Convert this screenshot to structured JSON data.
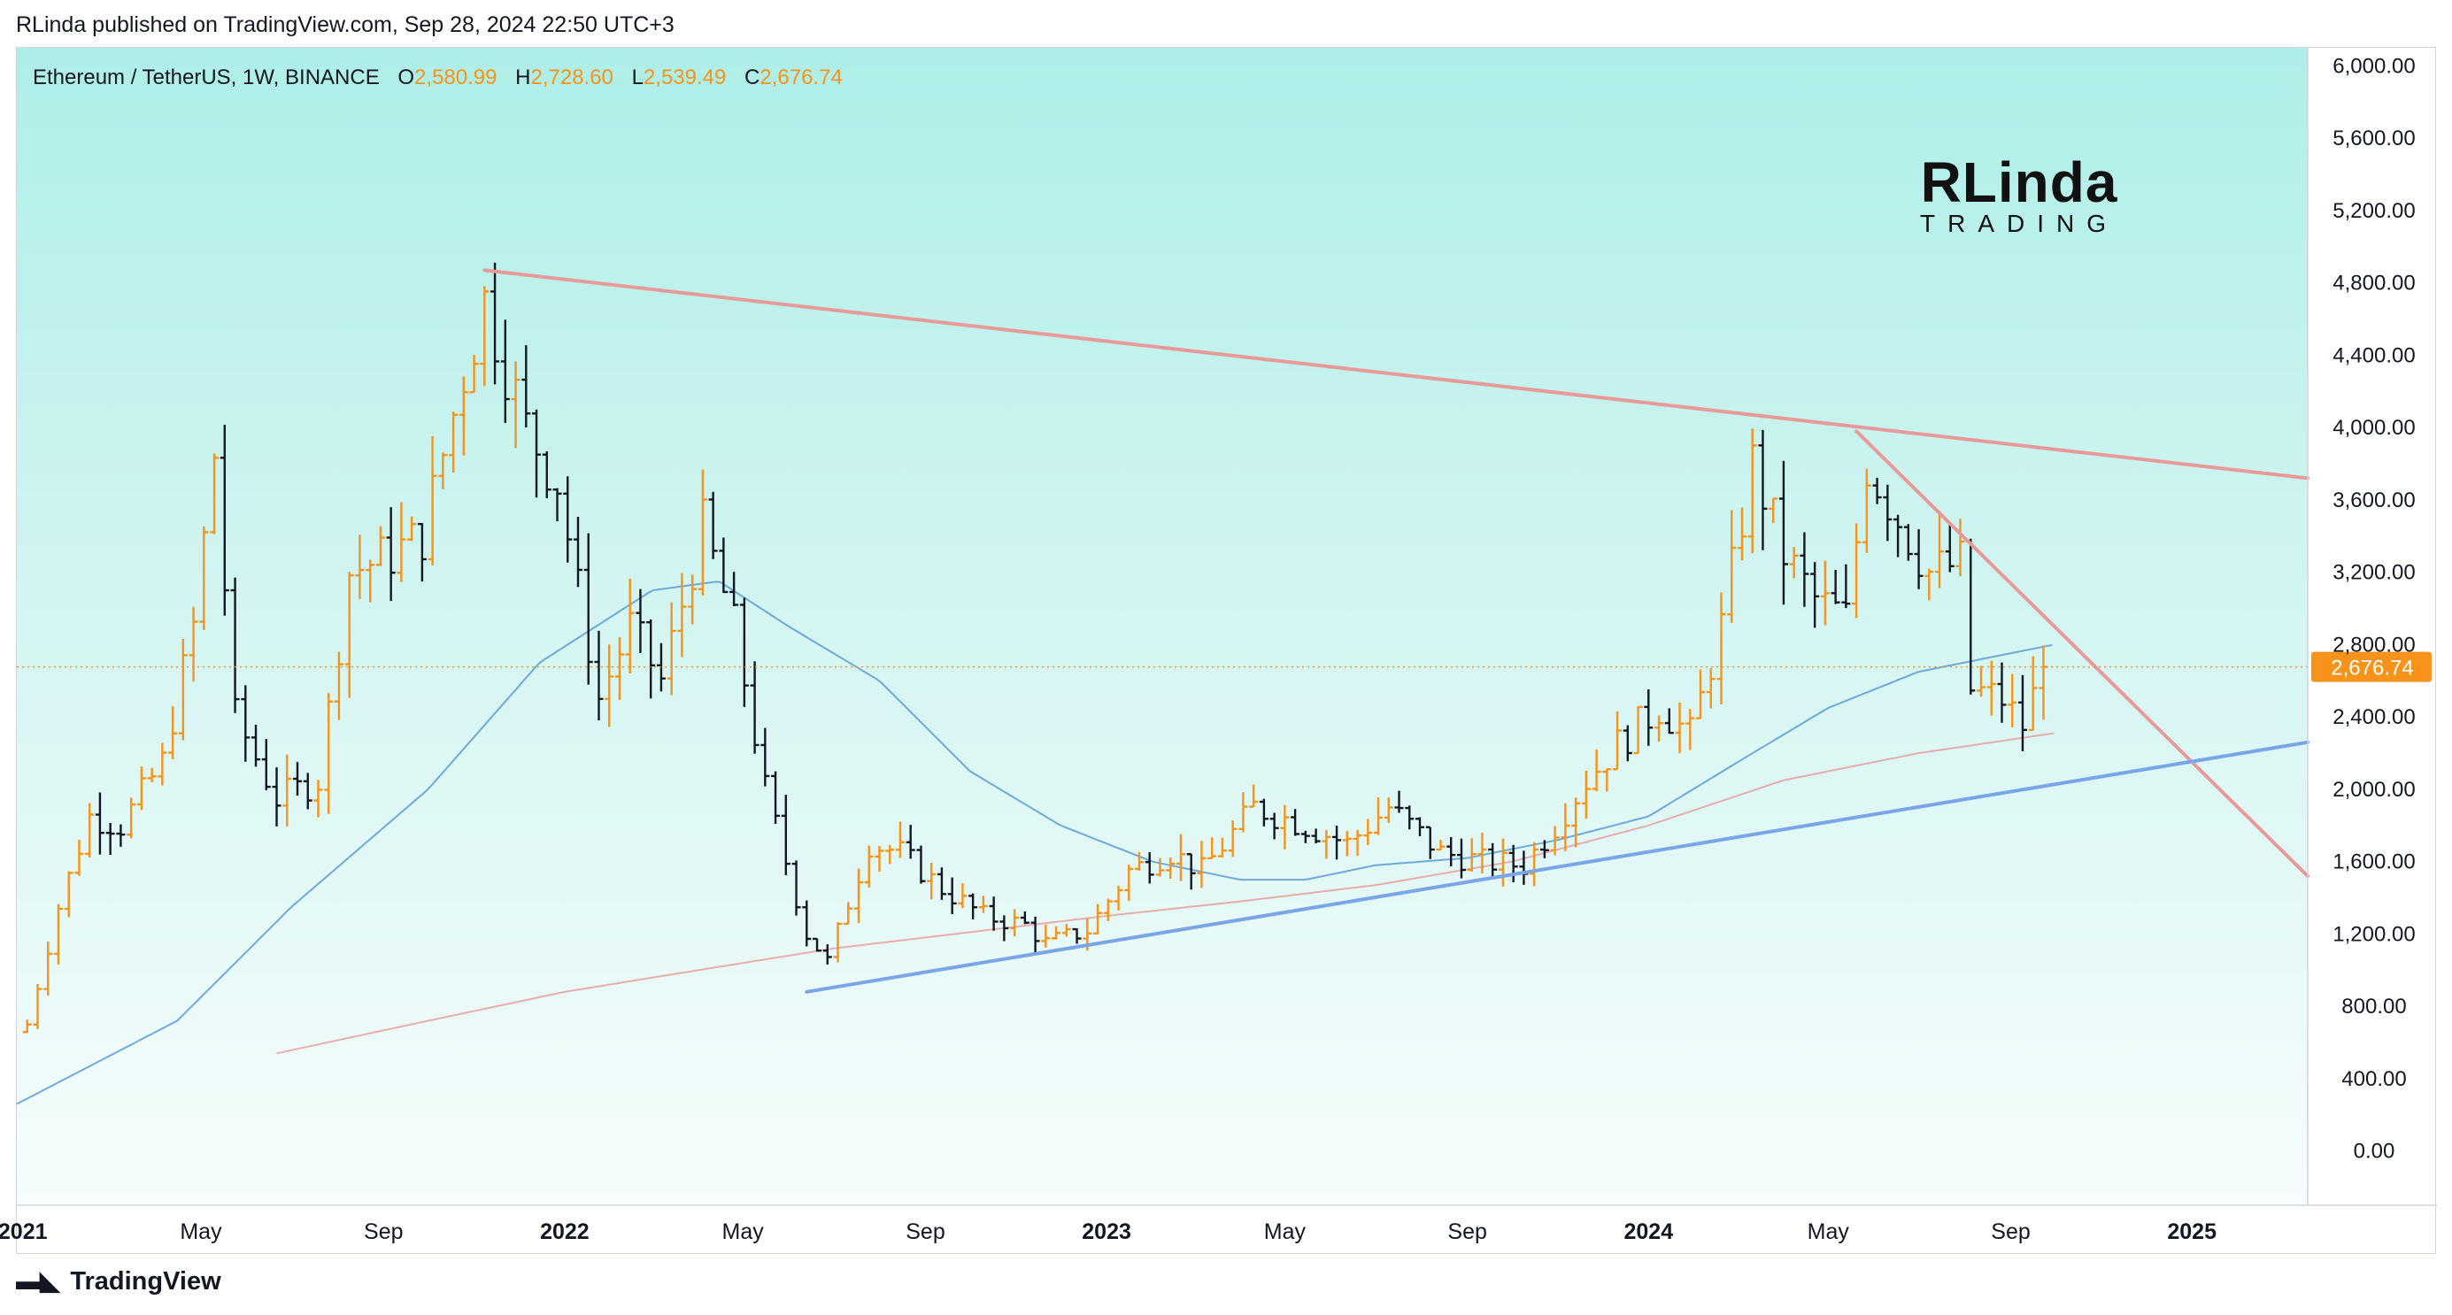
{
  "header": {
    "published": "RLinda published on TradingView.com, Sep 28, 2024 22:50 UTC+3"
  },
  "legend": {
    "symbol": "Ethereum / TetherUS, 1W, BINANCE",
    "o_label": "O",
    "o_value": "2,580.99",
    "h_label": "H",
    "h_value": "2,728.60",
    "l_label": "L",
    "l_value": "2,539.49",
    "c_label": "C",
    "c_value": "2,676.74"
  },
  "brand": {
    "line1": "RLinda",
    "line2": "TRADING"
  },
  "footer": {
    "label": "TradingView"
  },
  "colors": {
    "up": "#f7931a",
    "down": "#131722",
    "ma_fast": "#5b9bd5",
    "ma_slow": "#e8a0a0",
    "resistance": "#e89a9a",
    "support": "#7aa6e8",
    "last_price": "#f7931a"
  },
  "chart_data": {
    "type": "ohlc-bar",
    "symbol": "ETHUSDT",
    "timeframe": "1W",
    "last_price": 2676.74,
    "y_axis": {
      "ticks": [
        "0.00",
        "400.00",
        "800.00",
        "1,200.00",
        "1,600.00",
        "2,000.00",
        "2,400.00",
        "2,800.00",
        "3,200.00",
        "3,600.00",
        "4,000.00",
        "4,400.00",
        "4,800.00",
        "5,200.00",
        "5,600.00",
        "6,000.00"
      ],
      "range": [
        -300,
        6100
      ]
    },
    "x_axis": {
      "range": [
        "2020-12-28",
        "2025-03-20"
      ],
      "labels": [
        {
          "text": "2021",
          "date": "2021-01-01",
          "bold": true
        },
        {
          "text": "May",
          "date": "2021-05-01",
          "bold": false
        },
        {
          "text": "Sep",
          "date": "2021-09-01",
          "bold": false
        },
        {
          "text": "2022",
          "date": "2022-01-01",
          "bold": true
        },
        {
          "text": "May",
          "date": "2022-05-01",
          "bold": false
        },
        {
          "text": "Sep",
          "date": "2022-09-01",
          "bold": false
        },
        {
          "text": "2023",
          "date": "2023-01-01",
          "bold": true
        },
        {
          "text": "May",
          "date": "2023-05-01",
          "bold": false
        },
        {
          "text": "Sep",
          "date": "2023-09-01",
          "bold": false
        },
        {
          "text": "2024",
          "date": "2024-01-01",
          "bold": true
        },
        {
          "text": "May",
          "date": "2024-05-01",
          "bold": false
        },
        {
          "text": "Sep",
          "date": "2024-09-01",
          "bold": false
        },
        {
          "text": "2025",
          "date": "2025-01-01",
          "bold": true
        }
      ]
    },
    "ohlc_anchors": [
      [
        "2021-01-04",
        700
      ],
      [
        "2021-01-25",
        1350
      ],
      [
        "2021-02-15",
        1850
      ],
      [
        "2021-03-08",
        1800
      ],
      [
        "2021-04-05",
        2150
      ],
      [
        "2021-04-26",
        2900
      ],
      [
        "2021-05-10",
        3850
      ],
      [
        "2021-05-24",
        2400
      ],
      [
        "2021-06-21",
        1950
      ],
      [
        "2021-07-19",
        2050
      ],
      [
        "2021-08-09",
        3200
      ],
      [
        "2021-09-06",
        3300
      ],
      [
        "2021-09-27",
        3400
      ],
      [
        "2021-10-25",
        4300
      ],
      [
        "2021-11-08",
        4700
      ],
      [
        "2021-12-06",
        4000
      ],
      [
        "2021-12-27",
        3700
      ],
      [
        "2022-01-24",
        2500
      ],
      [
        "2022-02-14",
        2900
      ],
      [
        "2022-03-07",
        2600
      ],
      [
        "2022-04-04",
        3450
      ],
      [
        "2022-04-25",
        2900
      ],
      [
        "2022-05-16",
        2000
      ],
      [
        "2022-06-13",
        1200
      ],
      [
        "2022-06-27",
        1050
      ],
      [
        "2022-07-25",
        1700
      ],
      [
        "2022-08-15",
        1650
      ],
      [
        "2022-09-12",
        1450
      ],
      [
        "2022-10-10",
        1300
      ],
      [
        "2022-11-07",
        1250
      ],
      [
        "2022-11-21",
        1150
      ],
      [
        "2022-12-19",
        1220
      ],
      [
        "2023-01-16",
        1550
      ],
      [
        "2023-02-13",
        1650
      ],
      [
        "2023-03-06",
        1550
      ],
      [
        "2023-04-10",
        1900
      ],
      [
        "2023-05-15",
        1800
      ],
      [
        "2023-06-12",
        1700
      ],
      [
        "2023-07-10",
        1900
      ],
      [
        "2023-08-14",
        1650
      ],
      [
        "2023-09-11",
        1600
      ],
      [
        "2023-10-09",
        1580
      ],
      [
        "2023-10-30",
        1800
      ],
      [
        "2023-11-20",
        2050
      ],
      [
        "2023-12-11",
        2250
      ],
      [
        "2024-01-08",
        2450
      ],
      [
        "2024-01-29",
        2300
      ],
      [
        "2024-02-19",
        2900
      ],
      [
        "2024-03-11",
        3800
      ],
      [
        "2024-04-01",
        3300
      ],
      [
        "2024-04-22",
        3050
      ],
      [
        "2024-05-13",
        2950
      ],
      [
        "2024-05-27",
        3800
      ],
      [
        "2024-06-17",
        3500
      ],
      [
        "2024-07-08",
        3200
      ],
      [
        "2024-07-29",
        3250
      ],
      [
        "2024-08-05",
        2550
      ],
      [
        "2024-08-26",
        2500
      ],
      [
        "2024-09-09",
        2350
      ],
      [
        "2024-09-23",
        2676.74
      ]
    ],
    "ma_fast_anchors": [
      [
        "2020-12-28",
        260
      ],
      [
        "2021-04-15",
        720
      ],
      [
        "2021-07-01",
        1350
      ],
      [
        "2021-10-01",
        2000
      ],
      [
        "2021-12-15",
        2700
      ],
      [
        "2022-03-01",
        3100
      ],
      [
        "2022-04-15",
        3150
      ],
      [
        "2022-06-01",
        2900
      ],
      [
        "2022-08-01",
        2600
      ],
      [
        "2022-10-01",
        2100
      ],
      [
        "2022-12-01",
        1800
      ],
      [
        "2023-02-01",
        1600
      ],
      [
        "2023-04-01",
        1500
      ],
      [
        "2023-05-15",
        1500
      ],
      [
        "2023-07-01",
        1580
      ],
      [
        "2023-09-01",
        1620
      ],
      [
        "2023-11-01",
        1720
      ],
      [
        "2024-01-01",
        1850
      ],
      [
        "2024-03-01",
        2150
      ],
      [
        "2024-05-01",
        2450
      ],
      [
        "2024-07-01",
        2650
      ],
      [
        "2024-09-30",
        2800
      ]
    ],
    "ma_slow_anchors": [
      [
        "2021-06-21",
        540
      ],
      [
        "2021-10-01",
        720
      ],
      [
        "2022-01-01",
        880
      ],
      [
        "2022-04-01",
        1000
      ],
      [
        "2022-07-01",
        1120
      ],
      [
        "2022-10-01",
        1210
      ],
      [
        "2023-01-01",
        1300
      ],
      [
        "2023-04-01",
        1380
      ],
      [
        "2023-07-01",
        1470
      ],
      [
        "2023-10-01",
        1600
      ],
      [
        "2024-01-01",
        1800
      ],
      [
        "2024-04-01",
        2050
      ],
      [
        "2024-07-01",
        2200
      ],
      [
        "2024-09-30",
        2310
      ]
    ],
    "trendlines": [
      {
        "name": "descending-resistance",
        "from": [
          "2021-11-08",
          4870
        ],
        "to": [
          "2025-03-20",
          3720
        ]
      },
      {
        "name": "steep-resistance",
        "from": [
          "2024-05-20",
          3980
        ],
        "to": [
          "2025-03-20",
          1520
        ]
      },
      {
        "name": "ascending-support",
        "from": [
          "2022-06-13",
          880
        ],
        "to": [
          "2025-03-20",
          2260
        ]
      }
    ]
  }
}
